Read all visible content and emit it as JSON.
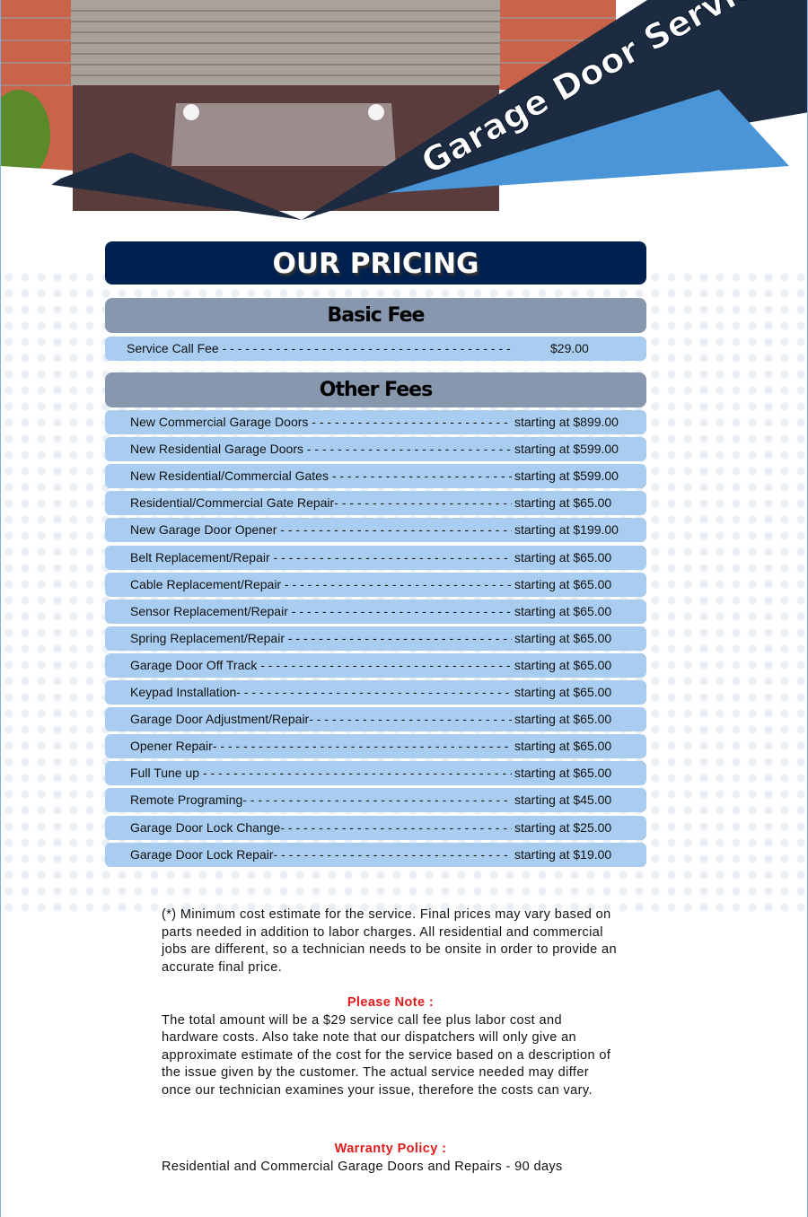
{
  "banner": {
    "title": "Garage Door Service",
    "colors": {
      "dark": "#1c2b40",
      "blue": "#4a94d8"
    }
  },
  "pricing_title": "OUR PRICING",
  "basic": {
    "heading": "Basic Fee",
    "items": [
      {
        "label": "Service Call Fee",
        "price": "$29.00"
      }
    ]
  },
  "other": {
    "heading": "Other Fees",
    "items": [
      {
        "label": "New Commercial Garage Doors",
        "price": "starting at $899.00"
      },
      {
        "label": "New Residential Garage Doors",
        "price": "starting at $599.00"
      },
      {
        "label": "New Residential/Commercial Gates",
        "price": "starting at $599.00"
      },
      {
        "label": "Residential/Commercial Gate Repair-",
        "price": "starting at $65.00"
      },
      {
        "label": "New Garage Door Opener",
        "price": "starting at $199.00"
      },
      {
        "label": "Belt Replacement/Repair",
        "price": "starting at $65.00"
      },
      {
        "label": "Cable Replacement/Repair",
        "price": "starting at $65.00"
      },
      {
        "label": "Sensor Replacement/Repair",
        "price": "starting at $65.00"
      },
      {
        "label": "Spring Replacement/Repair",
        "price": "starting at $65.00"
      },
      {
        "label": "Garage Door Off Track",
        "price": "starting at $65.00"
      },
      {
        "label": "Keypad Installation-",
        "price": "starting at $65.00"
      },
      {
        "label": "Garage Door Adjustment/Repair-",
        "price": "starting at $65.00"
      },
      {
        "label": "Opener Repair-",
        "price": "starting at $65.00"
      },
      {
        "label": "Full Tune up",
        "price": "starting at $65.00"
      },
      {
        "label": "Remote Programing-",
        "price": "starting at $45.00"
      },
      {
        "label": "Garage Door Lock Change-",
        "price": "starting at $25.00"
      },
      {
        "label": "Garage Door Lock Repair-",
        "price": "starting at $19.00"
      }
    ]
  },
  "notes": {
    "disclaimer": "(*) Minimum cost estimate for the service. Final prices may vary based on parts needed in addition to labor charges. All residential and commercial jobs are different, so a technician needs to be onsite in order to provide an accurate final price.",
    "please_note_heading": "Please Note :",
    "please_note": "The total amount will be a $29 service call fee plus labor cost and hardware costs. Also take note that our dispatchers will only give an approximate estimate of the cost for the service based on a description of the issue given by the customer. The actual service needed may differ once our technician examines your issue, therefore the costs can vary.",
    "warranty_heading": "Warranty Policy :",
    "warranty": "Residential and Commercial Garage Doors and Repairs - 90 days"
  }
}
